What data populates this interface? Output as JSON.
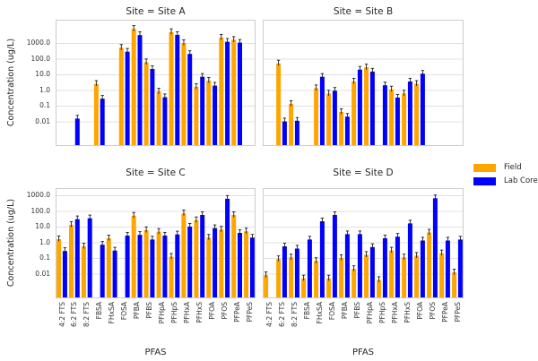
{
  "chart_data": {
    "type": "bar",
    "orientation": "vertical",
    "yscale": "log",
    "grid": "horizontal",
    "error_bars": true,
    "error_bar_top_factor": 1.6,
    "ylabel": "Concentration (ug/L)",
    "xlabel": "PFAS",
    "ytick_labels": [
      "1000.0",
      "100.0",
      "10.0",
      "1.0",
      "0.1",
      "0.01"
    ],
    "yticks": [
      1000,
      100,
      10,
      1,
      0.1,
      0.01
    ],
    "ylim_approx": [
      0.0003,
      30000
    ],
    "categories": [
      "4:2 FTS",
      "6:2 FTS",
      "8:2 FTS",
      "FBSA",
      "FHxSA",
      "FOSA",
      "PFBA",
      "PFBS",
      "PFHpA",
      "PFHpS",
      "PFHxA",
      "PFHxS",
      "PFOA",
      "PFOS",
      "PFPeA",
      "PFPeS"
    ],
    "legend": {
      "position": "right",
      "entries": [
        {
          "label": "Field",
          "color": "#FFA500"
        },
        {
          "label": "Lab Core",
          "color": "#0000FF"
        }
      ]
    },
    "facets": [
      {
        "site": "Site A",
        "title": "Site = Site A",
        "series": [
          {
            "name": "Field",
            "values": [
              null,
              null,
              null,
              2.5,
              null,
              500,
              8000,
              60,
              0.8,
              5000,
              1000,
              1.6,
              4,
              2200,
              1600,
              null
            ]
          },
          {
            "name": "Lab Core",
            "values": [
              null,
              0.015,
              null,
              0.28,
              null,
              280,
              3200,
              22,
              0.35,
              3300,
              200,
              7,
              1.9,
              1200,
              1050,
              null
            ]
          }
        ]
      },
      {
        "site": "Site B",
        "title": "Site = Site B",
        "series": [
          {
            "name": "Field",
            "values": [
              null,
              50,
              0.13,
              null,
              1.3,
              0.6,
              0.04,
              3.5,
              28,
              null,
              1.1,
              0.6,
              2.5,
              null,
              null,
              null
            ]
          },
          {
            "name": "Lab Core",
            "values": [
              null,
              0.01,
              0.011,
              null,
              7,
              0.9,
              0.02,
              20,
              15,
              2,
              0.33,
              3.5,
              11,
              null,
              null,
              null
            ]
          }
        ]
      },
      {
        "site": "Site C",
        "title": "Site = Site C",
        "series": [
          {
            "name": "Field",
            "values": [
              1.6,
              13,
              0.55,
              null,
              1.8,
              null,
              50,
              6,
              4.7,
              0.12,
              70,
              26,
              2,
              6.5,
              55,
              5
            ]
          },
          {
            "name": "Lab Core",
            "values": [
              0.28,
              30,
              34,
              0.7,
              0.3,
              2.7,
              3,
              1.5,
              2.7,
              3.2,
              10,
              55,
              8,
              600,
              4,
              2
            ]
          }
        ]
      },
      {
        "site": "Site D",
        "title": "Site = Site D",
        "series": [
          {
            "name": "Field",
            "values": [
              0.008,
              0.085,
              0.11,
              0.005,
              0.065,
              0.005,
              0.1,
              0.02,
              0.16,
              0.004,
              0.3,
              0.11,
              0.14,
              4.2,
              0.2,
              0.012
            ]
          },
          {
            "name": "Lab Core",
            "values": [
              null,
              0.55,
              0.4,
              1.5,
              22,
              55,
              3.3,
              3.3,
              0.5,
              1.8,
              2.3,
              16,
              1.3,
              650,
              1.3,
              1.5
            ]
          }
        ]
      }
    ]
  }
}
